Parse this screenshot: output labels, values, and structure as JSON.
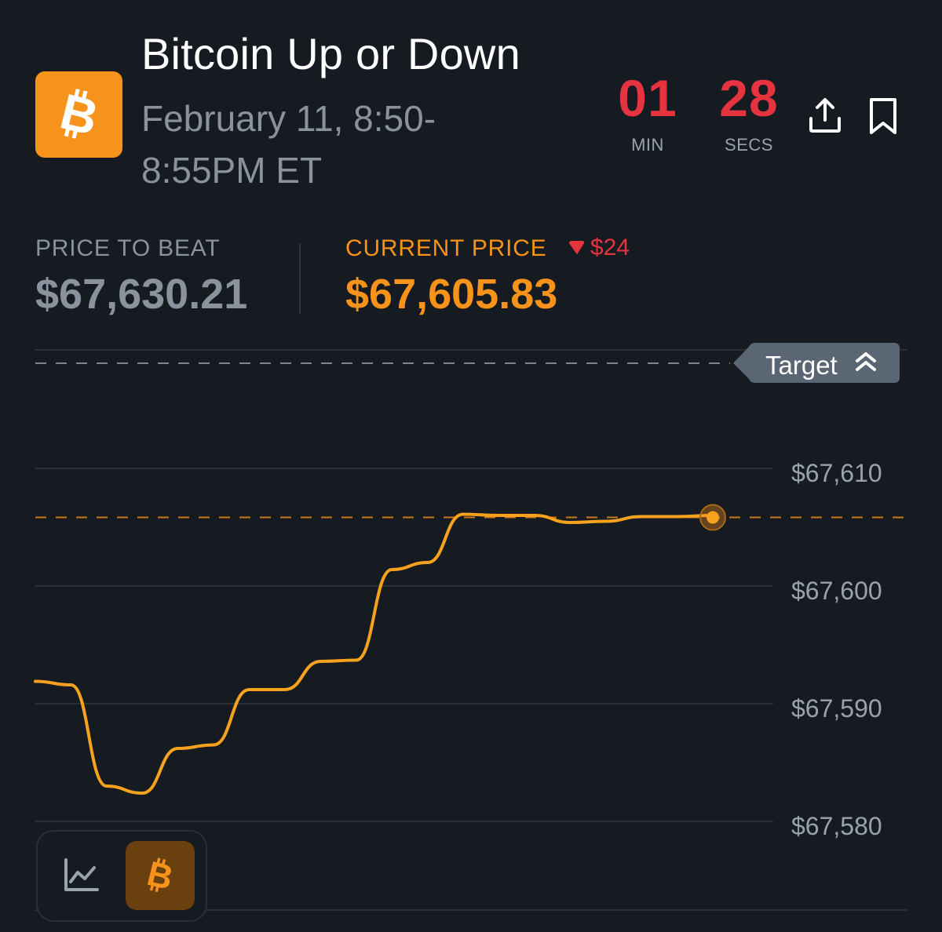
{
  "header": {
    "title": "Bitcoin Up or Down",
    "subtitle": "February 11, 8:50-8:55PM ET",
    "logo_icon": "bitcoin-icon",
    "brand_color": "#f7931a"
  },
  "countdown": {
    "minutes": "01",
    "minutes_label": "MIN",
    "seconds": "28",
    "seconds_label": "SECS",
    "color": "#e5343f"
  },
  "actions": {
    "share_icon": "share-upload-icon",
    "bookmark_icon": "bookmark-icon"
  },
  "stats": {
    "price_to_beat_label": "PRICE TO BEAT",
    "price_to_beat_value": "$67,630.21",
    "current_price_label": "CURRENT PRICE",
    "current_price_value": "$67,605.83",
    "delta_icon": "triangle-down-icon",
    "delta_value": "$24",
    "current_color": "#f7931a",
    "delta_color": "#e5343f"
  },
  "chart": {
    "target_label": "Target",
    "target_icon": "double-chevron-up-icon",
    "y_ticks": [
      "$67,610",
      "$67,600",
      "$67,590",
      "$67,580"
    ],
    "line_color": "#f7a21e"
  },
  "chart_data": {
    "type": "line",
    "title": "",
    "xlabel": "",
    "ylabel": "",
    "ylim": [
      67577,
      67614
    ],
    "y": [
      67591.9,
      67591.6,
      67583.0,
      67582.4,
      67586.2,
      67586.5,
      67591.2,
      67591.2,
      67593.6,
      67593.7,
      67601.4,
      67602.0,
      67606.1,
      67606.0,
      67606.0,
      67605.4,
      67605.5,
      67605.9,
      67605.9,
      67606.0
    ],
    "reference_lines": [
      {
        "name": "Target",
        "value": 67630.21
      },
      {
        "name": "current",
        "value": 67605.83
      }
    ]
  },
  "toggle": {
    "line_chart_icon": "line-chart-icon",
    "bitcoin_icon": "bitcoin-icon"
  }
}
